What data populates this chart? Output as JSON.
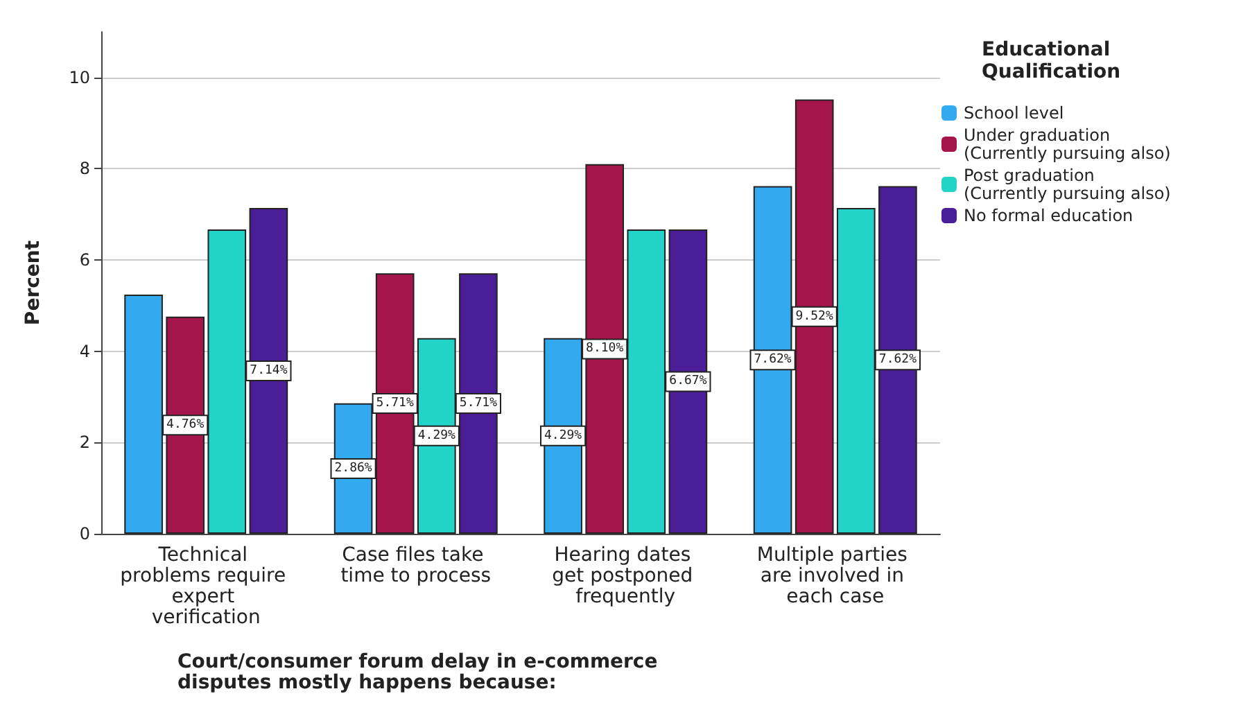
{
  "chart_data": {
    "type": "bar",
    "xlabel": "Court/consumer forum delay in e-commerce disputes mostly happens because:",
    "ylabel": "Percent",
    "legend_title": "Educational Qualification",
    "categories": [
      "Technical problems require expert verification",
      "Case files take time to process",
      "Hearing dates get postponed frequently",
      "Multiple parties are involved in each case"
    ],
    "series": [
      {
        "name": "School level",
        "color": "#33aaf0",
        "values": [
          5.24,
          2.86,
          4.29,
          7.62
        ],
        "value_labels": [
          null,
          "2.86%",
          "4.29%",
          "7.62%"
        ]
      },
      {
        "name": "Under graduation (Currently pursuing also)",
        "color": "#a3154b",
        "values": [
          4.76,
          5.71,
          8.1,
          9.52
        ],
        "value_labels": [
          "4.76%",
          "5.71%",
          "8.10%",
          "9.52%"
        ]
      },
      {
        "name": "Post graduation (Currently pursuing also)",
        "color": "#22d3c8",
        "values": [
          6.67,
          4.29,
          6.67,
          7.14
        ],
        "value_labels": [
          null,
          "4.29%",
          null,
          null
        ]
      },
      {
        "name": "No formal education",
        "color": "#4b1e98",
        "values": [
          7.14,
          5.71,
          6.67,
          7.62
        ],
        "value_labels": [
          "7.14%",
          "5.71%",
          "6.67%",
          "7.62%"
        ]
      }
    ],
    "ylim": [
      0,
      11
    ],
    "yticks": [
      0,
      2,
      4,
      6,
      8,
      10
    ],
    "grid": "y",
    "legend": "top right"
  }
}
